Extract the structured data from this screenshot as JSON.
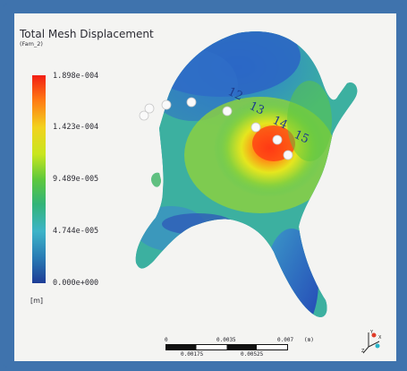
{
  "legend": {
    "title": "Total Mesh Displacement",
    "subtitle": "(Fam_2)",
    "ticks": [
      "1.898e-004",
      "1.423e-004",
      "9.489e-005",
      "4.744e-005",
      "0.000e+000"
    ],
    "unit": "[m]",
    "colors": [
      "#f21e14",
      "#ff7a14",
      "#f2d21e",
      "#c8e61e",
      "#5ec83c",
      "#32b478",
      "#3cb4c8",
      "#287ab4",
      "#1e3c96"
    ]
  },
  "markers": [
    "12",
    "13",
    "14",
    "15"
  ],
  "scale": {
    "top_labels": [
      "0",
      "0.0035",
      "0.007",
      "(m)"
    ],
    "bottom_labels": [
      "0.00175",
      "0.00525"
    ]
  },
  "triad": {
    "axes": [
      "X",
      "Y",
      "Z"
    ]
  },
  "frame_color": "#3f73ad"
}
